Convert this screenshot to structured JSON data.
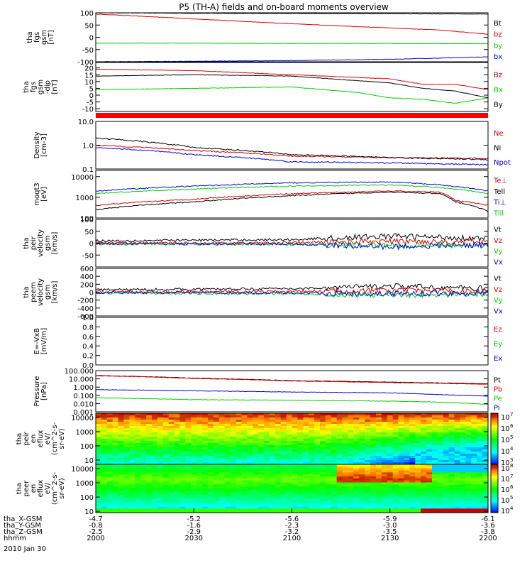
{
  "title": "P5 (TH-A) fields and on-board moments overview",
  "date_label": "2010 Jan 30",
  "colors": {
    "black": "#000000",
    "red": "#dd0000",
    "green": "#00cc00",
    "blue": "#0000dd",
    "bar_red": "#ff0000"
  },
  "chart_data": [
    {
      "type": "line",
      "name": "fgs-gsm",
      "ylabel": [
        "tha",
        "fgs",
        "gsm",
        "[nT]"
      ],
      "ylim": [
        -100,
        100
      ],
      "ticks": [
        {
          "v": 100,
          "label": "100"
        },
        {
          "v": 50,
          "label": "50"
        },
        {
          "v": 0,
          "label": "0"
        },
        {
          "v": -50,
          "label": "-50"
        },
        {
          "v": -100,
          "label": "-100"
        }
      ],
      "series": [
        {
          "label": "Bt",
          "color": "black",
          "x": [
            2000,
            2030,
            2100,
            2130,
            2200
          ],
          "y": [
            100,
            98,
            97,
            96,
            95
          ]
        },
        {
          "label": "bz",
          "color": "red",
          "x": [
            2000,
            2030,
            2100,
            2130,
            2145,
            2200
          ],
          "y": [
            95,
            75,
            55,
            38,
            30,
            12
          ]
        },
        {
          "label": "by",
          "color": "green",
          "x": [
            2000,
            2030,
            2100,
            2130,
            2200
          ],
          "y": [
            -24,
            -24,
            -25,
            -25,
            -26
          ]
        },
        {
          "label": "bx",
          "color": "blue",
          "x": [
            2000,
            2030,
            2100,
            2130,
            2200
          ],
          "y": [
            -100,
            -98,
            -95,
            -90,
            -80
          ]
        }
      ]
    },
    {
      "type": "line",
      "name": "fgs-gsm-dip",
      "ylabel": [
        "tha",
        "fgs",
        "gsm",
        "-dip",
        "[nT]"
      ],
      "ylim": [
        -12,
        24
      ],
      "ticks": [
        {
          "v": 20,
          "label": "20"
        },
        {
          "v": 15,
          "label": "15"
        },
        {
          "v": 10,
          "label": "10"
        },
        {
          "v": 5,
          "label": "5"
        },
        {
          "v": 0,
          "label": "0"
        },
        {
          "v": -5,
          "label": "-5"
        },
        {
          "v": -10,
          "label": "-10"
        }
      ],
      "series": [
        {
          "label": "Bz",
          "color": "red",
          "x": [
            2000,
            2030,
            2100,
            2130,
            2140,
            2150,
            2200
          ],
          "y": [
            19,
            18,
            15,
            12,
            8,
            8,
            4
          ]
        },
        {
          "label": "Bx",
          "color": "green",
          "x": [
            2000,
            2030,
            2100,
            2120,
            2130,
            2140,
            2150,
            2200
          ],
          "y": [
            4,
            5,
            6,
            2,
            -2,
            -3,
            -6,
            -2
          ]
        },
        {
          "label": "By",
          "color": "black",
          "x": [
            2000,
            2030,
            2100,
            2130,
            2140,
            2150,
            2200
          ],
          "y": [
            14,
            15,
            14,
            9,
            5,
            3,
            -2
          ]
        }
      ]
    },
    {
      "type": "line",
      "name": "density",
      "ylabel": [
        "Density",
        "[cm-3]"
      ],
      "log": true,
      "ylim": [
        0.1,
        10
      ],
      "ticks": [
        {
          "v": 10,
          "label": "10.0"
        },
        {
          "v": 1,
          "label": "1.0"
        },
        {
          "v": 0.1,
          "label": "0.1"
        }
      ],
      "series": [
        {
          "label": "Ne",
          "color": "red",
          "x": [
            2000,
            2030,
            2100,
            2130,
            2200
          ],
          "y": [
            1.0,
            0.6,
            0.35,
            0.3,
            0.28
          ]
        },
        {
          "label": "Ni",
          "color": "black",
          "x": [
            2000,
            2030,
            2100,
            2130,
            2200
          ],
          "y": [
            2.0,
            0.8,
            0.4,
            0.3,
            0.25
          ]
        },
        {
          "label": "Npot",
          "color": "blue",
          "x": [
            2000,
            2030,
            2100,
            2130,
            2200
          ],
          "y": [
            0.8,
            0.4,
            0.2,
            0.18,
            0.15
          ]
        }
      ]
    },
    {
      "type": "line",
      "name": "temperature",
      "ylabel": [
        "moqt3",
        "[eV]"
      ],
      "log": true,
      "ylim": [
        100,
        20000
      ],
      "ticks": [
        {
          "v": 10000,
          "label": "10000"
        },
        {
          "v": 1000,
          "label": "1000"
        },
        {
          "v": 100,
          "label": "100"
        }
      ],
      "series": [
        {
          "label": "Te⊥",
          "color": "red",
          "x": [
            2000,
            2030,
            2100,
            2130,
            2145,
            2150,
            2200
          ],
          "y": [
            400,
            800,
            1500,
            2000,
            1800,
            700,
            400
          ]
        },
        {
          "label": "Tell",
          "color": "black",
          "x": [
            2000,
            2030,
            2100,
            2130,
            2145,
            2150,
            2200
          ],
          "y": [
            250,
            600,
            1200,
            1800,
            1500,
            600,
            200
          ]
        },
        {
          "label": "Ti⊥",
          "color": "blue",
          "x": [
            2000,
            2030,
            2100,
            2130,
            2145,
            2200
          ],
          "y": [
            2000,
            3500,
            5000,
            5500,
            4000,
            2000
          ]
        },
        {
          "label": "Till",
          "color": "green",
          "x": [
            2000,
            2030,
            2100,
            2130,
            2145,
            2200
          ],
          "y": [
            1500,
            2500,
            3500,
            4000,
            3000,
            1500
          ]
        }
      ]
    },
    {
      "type": "line",
      "name": "peir-velocity",
      "ylabel": [
        "tha",
        "peir",
        "velocity",
        "gsm",
        "[km/s]"
      ],
      "ylim": [
        -100,
        100
      ],
      "ticks": [
        {
          "v": 100,
          "label": "100"
        },
        {
          "v": 50,
          "label": "50"
        },
        {
          "v": 0,
          "label": "0"
        },
        {
          "v": -50,
          "label": "-50"
        }
      ],
      "series": [
        {
          "label": "Vt",
          "color": "black",
          "x": [
            2000,
            2100,
            2130,
            2200
          ],
          "y": [
            10,
            15,
            30,
            20
          ]
        },
        {
          "label": "Vz",
          "color": "red",
          "x": [
            2000,
            2100,
            2130,
            2200
          ],
          "y": [
            0,
            2,
            8,
            5
          ]
        },
        {
          "label": "Vy",
          "color": "green",
          "x": [
            2000,
            2100,
            2130,
            2200
          ],
          "y": [
            -3,
            -5,
            -10,
            -8
          ]
        },
        {
          "label": "Vx",
          "color": "blue",
          "x": [
            2000,
            2100,
            2130,
            2200
          ],
          "y": [
            -2,
            -4,
            -15,
            -6
          ]
        }
      ]
    },
    {
      "type": "line",
      "name": "peem-velocity",
      "ylabel": [
        "tha",
        "peem",
        "velocity",
        "gsm",
        "[km/s]"
      ],
      "ylim": [
        -600,
        600
      ],
      "ticks": [
        {
          "v": 600,
          "label": "600"
        },
        {
          "v": 400,
          "label": "400"
        },
        {
          "v": 200,
          "label": "200"
        },
        {
          "v": 0,
          "label": "0"
        },
        {
          "v": -200,
          "label": "-200"
        },
        {
          "v": -400,
          "label": "-400"
        },
        {
          "v": -600,
          "label": "-600"
        }
      ],
      "series": [
        {
          "label": "Vt",
          "color": "black",
          "x": [
            2000,
            2100,
            2130,
            2200
          ],
          "y": [
            60,
            90,
            150,
            90
          ]
        },
        {
          "label": "Vz",
          "color": "red",
          "x": [
            2000,
            2100,
            2130,
            2200
          ],
          "y": [
            10,
            20,
            40,
            20
          ]
        },
        {
          "label": "Vy",
          "color": "green",
          "x": [
            2000,
            2100,
            2130,
            2200
          ],
          "y": [
            -20,
            -40,
            -80,
            -40
          ]
        },
        {
          "label": "Vx",
          "color": "blue",
          "x": [
            2000,
            2100,
            2130,
            2200
          ],
          "y": [
            -10,
            -20,
            -40,
            -20
          ]
        }
      ]
    },
    {
      "type": "line",
      "name": "efield",
      "ylabel": [
        "E=-VxB",
        "[mV/m]"
      ],
      "ylim": [
        0,
        1
      ],
      "ticks": [
        {
          "v": 1,
          "label": "1.0"
        },
        {
          "v": 0.8,
          "label": "0.8"
        },
        {
          "v": 0.6,
          "label": "0.6"
        },
        {
          "v": 0.4,
          "label": "0.4"
        },
        {
          "v": 0.2,
          "label": "0.2"
        },
        {
          "v": 0,
          "label": "0.0"
        }
      ],
      "series": [
        {
          "label": "Ez",
          "color": "red",
          "x": [],
          "y": []
        },
        {
          "label": "Ey",
          "color": "green",
          "x": [],
          "y": []
        },
        {
          "label": "Ex",
          "color": "blue",
          "x": [],
          "y": []
        }
      ]
    },
    {
      "type": "line",
      "name": "pressure",
      "ylabel": [
        "Pressure",
        "[nPa]"
      ],
      "log": true,
      "ylim": [
        0.001,
        100
      ],
      "ticks": [
        {
          "v": 100,
          "label": "100.000"
        },
        {
          "v": 10,
          "label": "10.000"
        },
        {
          "v": 1,
          "label": "1.000"
        },
        {
          "v": 0.1,
          "label": "0.100"
        },
        {
          "v": 0.01,
          "label": "0.010"
        },
        {
          "v": 0.001,
          "label": "0.001"
        }
      ],
      "series": [
        {
          "label": "Pt",
          "color": "black",
          "x": [
            2000,
            2030,
            2100,
            2130,
            2200
          ],
          "y": [
            25,
            12,
            6,
            4,
            2.5
          ]
        },
        {
          "label": "Pb",
          "color": "red",
          "x": [
            2000,
            2030,
            2100,
            2130,
            2200
          ],
          "y": [
            24,
            11,
            5.5,
            3.5,
            2.2
          ]
        },
        {
          "label": "Pe",
          "color": "green",
          "x": [
            2000,
            2030,
            2100,
            2130,
            2145,
            2200
          ],
          "y": [
            0.05,
            0.03,
            0.025,
            0.02,
            0.015,
            0.008
          ]
        },
        {
          "label": "Pi",
          "color": "blue",
          "x": [
            2000,
            2030,
            2100,
            2130,
            2145,
            2200
          ],
          "y": [
            0.5,
            0.35,
            0.25,
            0.2,
            0.12,
            0.08
          ]
        }
      ]
    },
    {
      "type": "heatmap",
      "name": "peir-spectrogram",
      "ylabel": [
        "tha",
        "peir",
        "en",
        "eflux",
        "eV/",
        "(cm^2-s-",
        "sr-eV)"
      ],
      "log": true,
      "ylim": [
        5,
        20000
      ],
      "ticks": [
        {
          "v": 10000,
          "label": "10000"
        },
        {
          "v": 1000,
          "label": "1000"
        },
        {
          "v": 100,
          "label": "100"
        },
        {
          "v": 10,
          "label": "10"
        }
      ],
      "colorbar": {
        "min_exp": 3,
        "max_exp": 7,
        "labels": [
          "10",
          "10",
          "10",
          "10",
          "10"
        ],
        "exps": [
          "7",
          "6",
          "5",
          "4",
          "3"
        ]
      }
    },
    {
      "type": "heatmap",
      "name": "peer-spectrogram",
      "ylabel": [
        "tha",
        "peer",
        "en",
        "eflux",
        "eV/",
        "(cm^2-s-",
        "sr-eV)"
      ],
      "log": true,
      "ylim": [
        8,
        20000
      ],
      "ticks": [
        {
          "v": 10000,
          "label": "10000"
        },
        {
          "v": 1000,
          "label": "1000"
        },
        {
          "v": 100,
          "label": "100"
        },
        {
          "v": 10,
          "label": "10"
        }
      ],
      "colorbar": {
        "min_exp": 4,
        "max_exp": 8,
        "labels": [
          "10",
          "10",
          "10",
          "10",
          "10"
        ],
        "exps": [
          "8",
          "7",
          "6",
          "5",
          "4"
        ]
      }
    }
  ],
  "xaxis": {
    "ticks": [
      2000,
      2030,
      2100,
      2130,
      2200
    ],
    "rows": [
      {
        "label": "tha_X-GSM",
        "values": [
          "-4.7",
          "-5.2",
          "-5.6",
          "-5.9",
          "-6.1"
        ]
      },
      {
        "label": "tha_Y-GSM",
        "values": [
          "-0.8",
          "-1.6",
          "-2.3",
          "-3.0",
          "-3.6"
        ]
      },
      {
        "label": "tha_Z-GSM",
        "values": [
          "-2.5",
          "-2.9",
          "-3.2",
          "-3.5",
          "-3.8"
        ]
      },
      {
        "label": "hhmm",
        "values": [
          "2000",
          "2030",
          "2100",
          "2130",
          "2200"
        ]
      }
    ]
  }
}
